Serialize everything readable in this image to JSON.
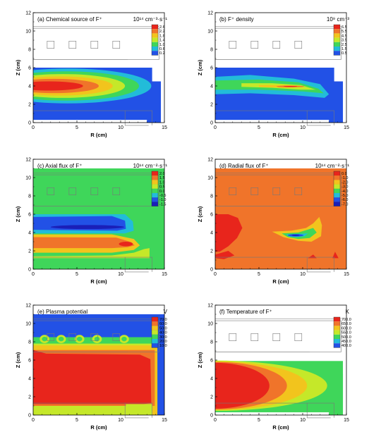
{
  "chart_data": [
    {
      "type": "heatmap",
      "panel": "a",
      "title": "(a) Chemical source of F⁺",
      "unit": "10¹⁴ cm⁻³·s⁻¹",
      "xlabel": "R (cm)",
      "ylabel": "Z (cm)",
      "xlim": [
        0,
        15
      ],
      "ylim": [
        0,
        12
      ],
      "xticks": [
        "0",
        "5",
        "10",
        "15"
      ],
      "yticks": [
        "0",
        "2",
        "4",
        "6",
        "8",
        "10",
        "12"
      ],
      "colorbar_levels": [
        "2.6",
        "2.2",
        "1.8",
        "1.4",
        "1.0",
        "0.6",
        "0.2"
      ],
      "colorbar_colors": [
        "#e8251c",
        "#f0742a",
        "#f2c41d",
        "#c5e829",
        "#3fd65a",
        "#22bcd9",
        "#2251e6"
      ]
    },
    {
      "type": "heatmap",
      "panel": "b",
      "title": "(b) F⁺ density",
      "unit": "10⁹ cm⁻³",
      "xlabel": "R (cm)",
      "ylabel": "Z (cm)",
      "xlim": [
        0,
        15
      ],
      "ylim": [
        0,
        12
      ],
      "xticks": [
        "0",
        "5",
        "10",
        "15"
      ],
      "yticks": [
        "0",
        "2",
        "4",
        "6",
        "8",
        "10",
        "12"
      ],
      "colorbar_levels": [
        "6.5",
        "5.5",
        "4.5",
        "3.5",
        "2.5",
        "1.5",
        "0.5"
      ],
      "colorbar_colors": [
        "#e8251c",
        "#f0742a",
        "#f2c41d",
        "#c5e829",
        "#3fd65a",
        "#22bcd9",
        "#2251e6"
      ]
    },
    {
      "type": "heatmap",
      "panel": "c",
      "title": "(c) Axial flux of F⁺",
      "unit": "10¹⁴ cm⁻²·s⁻¹",
      "xlabel": "R (cm)",
      "ylabel": "Z (cm)",
      "xlim": [
        0,
        15
      ],
      "ylim": [
        0,
        12
      ],
      "xticks": [
        "0",
        "5",
        "10",
        "15"
      ],
      "yticks": [
        "0",
        "2",
        "4",
        "6",
        "8",
        "10",
        "12"
      ],
      "colorbar_levels": [
        "2.0",
        "1.5",
        "1.0",
        "0.5",
        "0.0",
        "-0.5",
        "-1.0",
        "-1.5"
      ],
      "colorbar_colors": [
        "#e8251c",
        "#f0742a",
        "#f2c41d",
        "#c5e829",
        "#3fd65a",
        "#22bcd9",
        "#2251e6",
        "#1a1fb8"
      ]
    },
    {
      "type": "heatmap",
      "panel": "d",
      "title": "(d) Radial flux of F⁺",
      "unit": "10¹⁴ cm⁻²·s⁻¹",
      "xlabel": "R (cm)",
      "ylabel": "Z (cm)",
      "xlim": [
        0,
        15
      ],
      "ylim": [
        0,
        12
      ],
      "xticks": [
        "0",
        "5",
        "10",
        "15"
      ],
      "yticks": [
        "0",
        "2",
        "4",
        "6",
        "8",
        "10",
        "12"
      ],
      "colorbar_levels": [
        "0.0",
        "-1.0",
        "-2.0",
        "-3.0",
        "-4.0",
        "-5.0",
        "-6.0",
        "-7.0"
      ],
      "colorbar_colors": [
        "#e8251c",
        "#f0742a",
        "#f2c41d",
        "#c5e829",
        "#3fd65a",
        "#22bcd9",
        "#2251e6",
        "#1a1fb8"
      ]
    },
    {
      "type": "heatmap",
      "panel": "e",
      "title": "(e) Plasma potential",
      "unit": "V",
      "xlabel": "R (cm)",
      "ylabel": "Z (cm)",
      "xlim": [
        0,
        15
      ],
      "ylim": [
        0,
        12
      ],
      "xticks": [
        "0",
        "5",
        "10",
        "15"
      ],
      "yticks": [
        "0",
        "2",
        "4",
        "6",
        "8",
        "10",
        "12"
      ],
      "colorbar_levels": [
        "70.0",
        "60.0",
        "50.0",
        "40.0",
        "30.0",
        "20.0",
        "10.0"
      ],
      "colorbar_colors": [
        "#e8251c",
        "#f0742a",
        "#f2c41d",
        "#c5e829",
        "#3fd65a",
        "#22bcd9",
        "#2251e6"
      ]
    },
    {
      "type": "heatmap",
      "panel": "f",
      "title": "(f) Temperature of F⁺",
      "unit": "K",
      "xlabel": "R (cm)",
      "ylabel": "Z (cm)",
      "xlim": [
        0,
        15
      ],
      "ylim": [
        0,
        12
      ],
      "xticks": [
        "0",
        "5",
        "10",
        "15"
      ],
      "yticks": [
        "0",
        "2",
        "4",
        "6",
        "8",
        "10",
        "12"
      ],
      "colorbar_levels": [
        "700.0",
        "650.0",
        "600.0",
        "550.0",
        "500.0",
        "450.0",
        "400.0"
      ],
      "colorbar_colors": [
        "#e8251c",
        "#f0742a",
        "#f2c41d",
        "#c5e829",
        "#3fd65a",
        "#22bcd9",
        "#2251e6"
      ]
    }
  ]
}
